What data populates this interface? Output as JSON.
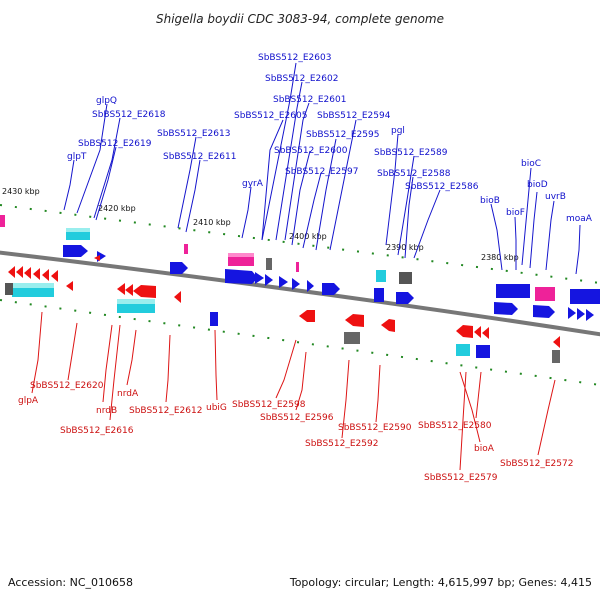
{
  "title": "Shigella boydii CDC 3083-94, complete genome",
  "footer": {
    "accession": "Accession: NC_010658",
    "summary": "Topology: circular; Length: 4,615,997 bp; Genes: 4,415"
  },
  "ticks": [
    "2430 kbp",
    "2420 kbp",
    "2410 kbp",
    "2400 kbp",
    "2390 kbp",
    "2380 kbp"
  ],
  "colors": {
    "plus_strand": "#1515e0",
    "minus_strand": "#ee1111",
    "cyan_feature": "#22ccdd",
    "pink_feature": "#ee2299",
    "grey_feature": "#666666",
    "backbone": "#777777",
    "dots": "#228822",
    "label_top": "#1010cc",
    "label_bottom": "#cc1010"
  },
  "labels_top": [
    "SbBS512_E2603",
    "SbBS512_E2602",
    "SbBS512_E2601",
    "SbBS512_E2605",
    "SbBS512_E2594",
    "glpQ",
    "SbBS512_E2618",
    "SbBS512_E2613",
    "SbBS512_E2595",
    "pgl",
    "SbBS512_E2619",
    "SbBS512_E2600",
    "SbBS512_E2589",
    "glpT",
    "SbBS512_E2611",
    "bioC",
    "SbBS512_E2597",
    "SbBS512_E2588",
    "gyrA",
    "SbBS512_E2586",
    "bioD",
    "uvrB",
    "bioB",
    "bioF",
    "moaA"
  ],
  "labels_bottom": [
    "SbBS512_E2620",
    "nrdA",
    "glpA",
    "nrdB",
    "SbBS512_E2612",
    "ubiG",
    "SbBS512_E2598",
    "SbBS512_E2616",
    "SbBS512_E2596",
    "SbBS512_E2590",
    "SbBS512_E2580",
    "SbBS512_E2592",
    "bioA",
    "SbBS512_E2572",
    "SbBS512_E2579"
  ]
}
